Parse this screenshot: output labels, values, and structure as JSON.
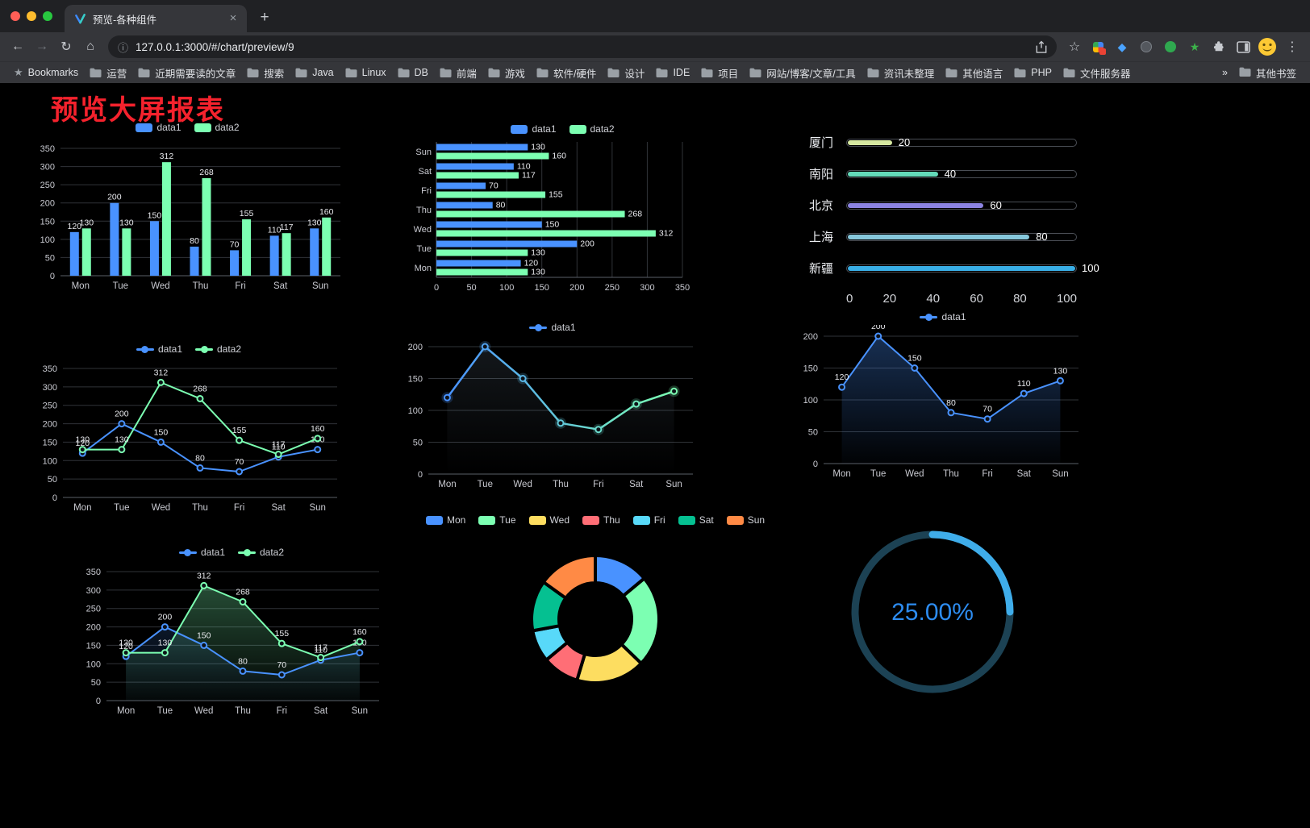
{
  "browser": {
    "tab_title": "预览-各种组件",
    "url": "127.0.0.1:3000/#/chart/preview/9",
    "bookmarks": {
      "first": "Bookmarks",
      "folders": [
        "运营",
        "近期需要读的文章",
        "搜索",
        "Java",
        "Linux",
        "DB",
        "前端",
        "游戏",
        "软件/硬件",
        "设计",
        "IDE",
        "项目",
        "网站/博客/文章/工具",
        "资讯未整理",
        "其他语言",
        "PHP",
        "文件服务器"
      ],
      "overflow": "»",
      "other": "其他书签"
    }
  },
  "page": {
    "title": "预览大屏报表"
  },
  "colors": {
    "title_red": "#f5222d",
    "accent_blue": "#4992ff",
    "accent_green": "#7cffb2"
  },
  "chart_data": [
    {
      "type": "bar",
      "categories": [
        "Mon",
        "Tue",
        "Wed",
        "Thu",
        "Fri",
        "Sat",
        "Sun"
      ],
      "series": [
        {
          "name": "data1",
          "color": "#4992ff",
          "values": [
            120,
            200,
            150,
            80,
            70,
            110,
            130
          ]
        },
        {
          "name": "data2",
          "color": "#7cffb2",
          "values": [
            130,
            130,
            312,
            268,
            155,
            117,
            160
          ]
        }
      ],
      "ylim": [
        0,
        350
      ],
      "yticks": [
        0,
        50,
        100,
        150,
        200,
        250,
        300,
        350
      ],
      "grid": true,
      "legend_position": "top",
      "show_labels": true
    },
    {
      "type": "hbar",
      "categories": [
        "Mon",
        "Tue",
        "Wed",
        "Thu",
        "Fri",
        "Sat",
        "Sun"
      ],
      "series": [
        {
          "name": "data1",
          "color": "#4992ff",
          "values": [
            120,
            200,
            150,
            80,
            70,
            110,
            130
          ]
        },
        {
          "name": "data2",
          "color": "#7cffb2",
          "values": [
            130,
            130,
            312,
            268,
            155,
            117,
            160
          ]
        }
      ],
      "xlim": [
        0,
        350
      ],
      "xticks": [
        0,
        50,
        100,
        150,
        200,
        250,
        300,
        350
      ],
      "grid": true,
      "legend_position": "top",
      "show_labels": true
    },
    {
      "type": "progress",
      "items": [
        {
          "label": "厦门",
          "value": 20,
          "color": "#d6e8a0"
        },
        {
          "label": "南阳",
          "value": 40,
          "color": "#63d9b9"
        },
        {
          "label": "北京",
          "value": 60,
          "color": "#8c84e2"
        },
        {
          "label": "上海",
          "value": 80,
          "color": "#86c8dc"
        },
        {
          "label": "新疆",
          "value": 100,
          "color": "#39aee6"
        }
      ],
      "max": 100,
      "xticks": [
        0,
        20,
        40,
        60,
        80,
        100
      ]
    },
    {
      "type": "line",
      "categories": [
        "Mon",
        "Tue",
        "Wed",
        "Thu",
        "Fri",
        "Sat",
        "Sun"
      ],
      "series": [
        {
          "name": "data1",
          "color": "#4992ff",
          "values": [
            120,
            200,
            150,
            80,
            70,
            110,
            130
          ]
        },
        {
          "name": "data2",
          "color": "#7cffb2",
          "values": [
            130,
            130,
            312,
            268,
            155,
            117,
            160
          ]
        }
      ],
      "ylim": [
        0,
        350
      ],
      "yticks": [
        0,
        50,
        100,
        150,
        200,
        250,
        300,
        350
      ],
      "grid": true,
      "legend_position": "top",
      "show_labels": true
    },
    {
      "type": "line-gradient",
      "categories": [
        "Mon",
        "Tue",
        "Wed",
        "Thu",
        "Fri",
        "Sat",
        "Sun"
      ],
      "series": [
        {
          "name": "data1",
          "color_start": "#4992ff",
          "color_end": "#7cffb2",
          "values": [
            120,
            200,
            150,
            80,
            70,
            110,
            130
          ]
        }
      ],
      "ylim": [
        0,
        200
      ],
      "yticks": [
        0,
        50,
        100,
        150,
        200
      ],
      "grid": true,
      "legend_position": "top",
      "show_labels": false
    },
    {
      "type": "area",
      "categories": [
        "Mon",
        "Tue",
        "Wed",
        "Thu",
        "Fri",
        "Sat",
        "Sun"
      ],
      "series": [
        {
          "name": "data1",
          "color": "#4992ff",
          "values": [
            120,
            200,
            150,
            80,
            70,
            110,
            130
          ]
        }
      ],
      "ylim": [
        0,
        200
      ],
      "yticks": [
        0,
        50,
        100,
        150,
        200
      ],
      "grid": true,
      "legend_position": "top",
      "show_labels": true
    },
    {
      "type": "line-area",
      "categories": [
        "Mon",
        "Tue",
        "Wed",
        "Thu",
        "Fri",
        "Sat",
        "Sun"
      ],
      "series": [
        {
          "name": "data1",
          "color": "#4992ff",
          "values": [
            120,
            200,
            150,
            80,
            70,
            110,
            130
          ]
        },
        {
          "name": "data2",
          "color": "#7cffb2",
          "values": [
            130,
            130,
            312,
            268,
            155,
            117,
            160
          ]
        }
      ],
      "ylim": [
        0,
        350
      ],
      "yticks": [
        0,
        50,
        100,
        150,
        200,
        250,
        300,
        350
      ],
      "grid": true,
      "legend_position": "top",
      "show_labels": true
    },
    {
      "type": "pie",
      "labels": [
        "Mon",
        "Tue",
        "Wed",
        "Thu",
        "Fri",
        "Sat",
        "Sun"
      ],
      "values": [
        120,
        200,
        150,
        80,
        70,
        110,
        130
      ],
      "colors": [
        "#4992ff",
        "#7cffb2",
        "#fddd60",
        "#ff6e76",
        "#58d9f9",
        "#05c091",
        "#ff8a45"
      ],
      "legend_position": "top"
    },
    {
      "type": "gauge",
      "value": 25,
      "text": "25.00%",
      "color": "#3fadea",
      "track_color": "#1c4254",
      "text_color": "#2d8cf0"
    }
  ]
}
